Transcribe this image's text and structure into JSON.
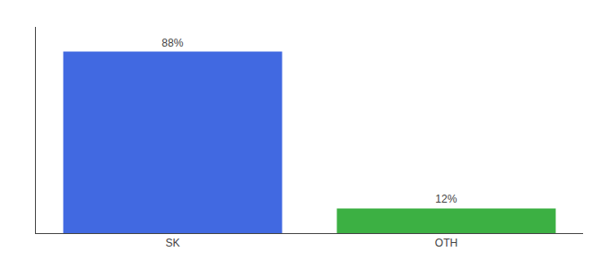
{
  "chart_data": {
    "type": "bar",
    "categories": [
      "SK",
      "OTH"
    ],
    "values": [
      88,
      12
    ],
    "value_labels": [
      "88%",
      "12%"
    ],
    "colors": [
      "#4169e1",
      "#3cb043"
    ],
    "ylim": [
      0,
      100
    ],
    "grid": false,
    "tick_labels": "x"
  }
}
